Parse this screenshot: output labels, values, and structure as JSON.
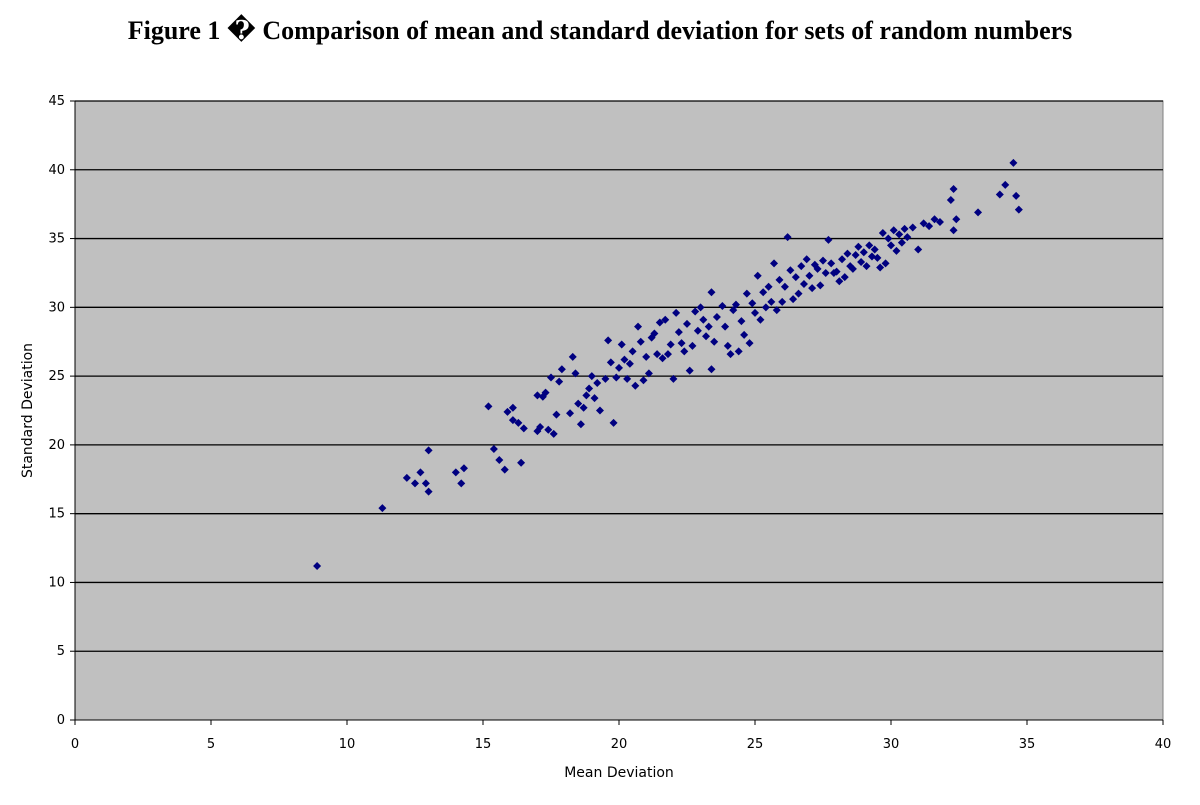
{
  "chart_data": {
    "type": "scatter",
    "title": "Figure 1 � Comparison of mean and standard deviation for sets of random numbers",
    "xlabel": "Mean Deviation",
    "ylabel": "Standard Deviation",
    "xlim": [
      0,
      40
    ],
    "ylim": [
      0,
      45
    ],
    "xticks": [
      0,
      5,
      10,
      15,
      20,
      25,
      30,
      35,
      40
    ],
    "yticks": [
      0,
      5,
      10,
      15,
      20,
      25,
      30,
      35,
      40,
      45
    ],
    "grid": "horizontal",
    "colors": {
      "plot_bg": "#c0c0c0",
      "marker": "#000080",
      "grid": "#000000"
    },
    "marker": "diamond",
    "series": [
      {
        "name": "Standard Deviation",
        "points": [
          [
            8.9,
            11.2
          ],
          [
            11.3,
            15.4
          ],
          [
            12.2,
            17.6
          ],
          [
            12.5,
            17.2
          ],
          [
            12.7,
            18.0
          ],
          [
            12.9,
            17.2
          ],
          [
            13.0,
            16.6
          ],
          [
            13.0,
            19.6
          ],
          [
            14.0,
            18.0
          ],
          [
            14.2,
            17.2
          ],
          [
            14.3,
            18.3
          ],
          [
            15.2,
            22.8
          ],
          [
            15.4,
            19.7
          ],
          [
            15.6,
            18.9
          ],
          [
            15.8,
            18.2
          ],
          [
            15.9,
            22.4
          ],
          [
            16.1,
            22.7
          ],
          [
            16.1,
            21.8
          ],
          [
            16.3,
            21.6
          ],
          [
            16.4,
            18.7
          ],
          [
            16.5,
            21.2
          ],
          [
            17.0,
            23.6
          ],
          [
            17.0,
            21.0
          ],
          [
            17.1,
            21.3
          ],
          [
            17.2,
            23.5
          ],
          [
            17.3,
            23.8
          ],
          [
            17.4,
            21.1
          ],
          [
            17.5,
            24.9
          ],
          [
            17.6,
            20.8
          ],
          [
            17.7,
            22.2
          ],
          [
            17.8,
            24.6
          ],
          [
            17.9,
            25.5
          ],
          [
            18.2,
            22.3
          ],
          [
            18.3,
            26.4
          ],
          [
            18.4,
            25.2
          ],
          [
            18.5,
            23.0
          ],
          [
            18.6,
            21.5
          ],
          [
            18.7,
            22.7
          ],
          [
            18.8,
            23.6
          ],
          [
            18.9,
            24.1
          ],
          [
            19.0,
            25.0
          ],
          [
            19.1,
            23.4
          ],
          [
            19.2,
            24.5
          ],
          [
            19.3,
            22.5
          ],
          [
            19.5,
            24.8
          ],
          [
            19.6,
            27.6
          ],
          [
            19.7,
            26.0
          ],
          [
            19.8,
            21.6
          ],
          [
            19.9,
            24.9
          ],
          [
            20.0,
            25.6
          ],
          [
            20.1,
            27.3
          ],
          [
            20.2,
            26.2
          ],
          [
            20.3,
            24.8
          ],
          [
            20.4,
            25.9
          ],
          [
            20.5,
            26.8
          ],
          [
            20.6,
            24.3
          ],
          [
            20.7,
            28.6
          ],
          [
            20.8,
            27.5
          ],
          [
            20.9,
            24.7
          ],
          [
            21.0,
            26.4
          ],
          [
            21.1,
            25.2
          ],
          [
            21.2,
            27.8
          ],
          [
            21.3,
            28.1
          ],
          [
            21.4,
            26.6
          ],
          [
            21.5,
            28.9
          ],
          [
            21.6,
            26.3
          ],
          [
            21.7,
            29.1
          ],
          [
            21.8,
            26.6
          ],
          [
            21.9,
            27.3
          ],
          [
            22.0,
            24.8
          ],
          [
            22.1,
            29.6
          ],
          [
            22.2,
            28.2
          ],
          [
            22.3,
            27.4
          ],
          [
            22.4,
            26.8
          ],
          [
            22.5,
            28.8
          ],
          [
            22.6,
            25.4
          ],
          [
            22.7,
            27.2
          ],
          [
            22.8,
            29.7
          ],
          [
            22.9,
            28.3
          ],
          [
            23.0,
            30.0
          ],
          [
            23.1,
            29.1
          ],
          [
            23.2,
            27.9
          ],
          [
            23.3,
            28.6
          ],
          [
            23.4,
            31.1
          ],
          [
            23.4,
            25.5
          ],
          [
            23.5,
            27.5
          ],
          [
            23.6,
            29.3
          ],
          [
            23.8,
            30.1
          ],
          [
            23.9,
            28.6
          ],
          [
            24.0,
            27.2
          ],
          [
            24.1,
            26.6
          ],
          [
            24.2,
            29.8
          ],
          [
            24.3,
            30.2
          ],
          [
            24.4,
            26.8
          ],
          [
            24.5,
            29.0
          ],
          [
            24.6,
            28.0
          ],
          [
            24.7,
            31.0
          ],
          [
            24.8,
            27.4
          ],
          [
            24.9,
            30.3
          ],
          [
            25.0,
            29.6
          ],
          [
            25.1,
            32.3
          ],
          [
            25.2,
            29.1
          ],
          [
            25.3,
            31.1
          ],
          [
            25.4,
            30.0
          ],
          [
            25.5,
            31.5
          ],
          [
            25.6,
            30.4
          ],
          [
            25.7,
            33.2
          ],
          [
            25.8,
            29.8
          ],
          [
            25.9,
            32.0
          ],
          [
            26.0,
            30.4
          ],
          [
            26.1,
            31.5
          ],
          [
            26.2,
            35.1
          ],
          [
            26.3,
            32.7
          ],
          [
            26.4,
            30.6
          ],
          [
            26.5,
            32.2
          ],
          [
            26.6,
            31.0
          ],
          [
            26.7,
            33.0
          ],
          [
            26.8,
            31.7
          ],
          [
            26.9,
            33.5
          ],
          [
            27.0,
            32.3
          ],
          [
            27.1,
            31.4
          ],
          [
            27.2,
            33.1
          ],
          [
            27.3,
            32.8
          ],
          [
            27.4,
            31.6
          ],
          [
            27.5,
            33.4
          ],
          [
            27.6,
            32.5
          ],
          [
            27.7,
            34.9
          ],
          [
            27.8,
            33.2
          ],
          [
            27.9,
            32.5
          ],
          [
            28.0,
            32.6
          ],
          [
            28.1,
            31.9
          ],
          [
            28.2,
            33.5
          ],
          [
            28.3,
            32.2
          ],
          [
            28.4,
            33.9
          ],
          [
            28.5,
            33.0
          ],
          [
            28.6,
            32.8
          ],
          [
            28.7,
            33.8
          ],
          [
            28.8,
            34.4
          ],
          [
            28.9,
            33.3
          ],
          [
            29.0,
            34.0
          ],
          [
            29.1,
            33.0
          ],
          [
            29.2,
            34.5
          ],
          [
            29.3,
            33.7
          ],
          [
            29.4,
            34.2
          ],
          [
            29.5,
            33.6
          ],
          [
            29.6,
            32.9
          ],
          [
            29.7,
            35.4
          ],
          [
            29.8,
            33.2
          ],
          [
            29.9,
            35.0
          ],
          [
            30.0,
            34.5
          ],
          [
            30.1,
            35.6
          ],
          [
            30.2,
            34.1
          ],
          [
            30.3,
            35.3
          ],
          [
            30.4,
            34.7
          ],
          [
            30.5,
            35.7
          ],
          [
            30.6,
            35.1
          ],
          [
            30.8,
            35.8
          ],
          [
            31.0,
            34.2
          ],
          [
            31.2,
            36.1
          ],
          [
            31.4,
            35.9
          ],
          [
            31.6,
            36.4
          ],
          [
            31.8,
            36.2
          ],
          [
            32.2,
            37.8
          ],
          [
            32.3,
            38.6
          ],
          [
            32.3,
            35.6
          ],
          [
            32.4,
            36.4
          ],
          [
            33.2,
            36.9
          ],
          [
            34.0,
            38.2
          ],
          [
            34.2,
            38.9
          ],
          [
            34.5,
            40.5
          ],
          [
            34.6,
            38.1
          ],
          [
            34.7,
            37.1
          ]
        ]
      }
    ]
  }
}
